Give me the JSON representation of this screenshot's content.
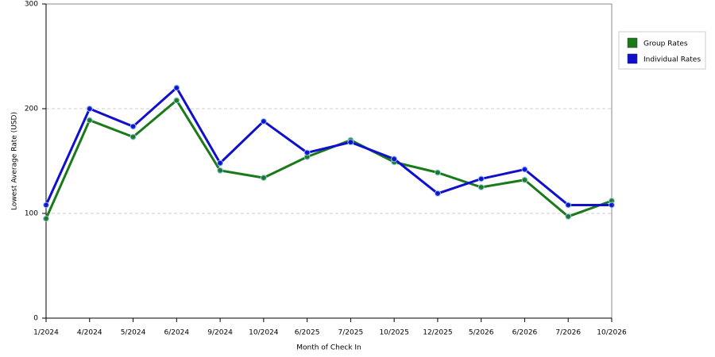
{
  "chart_data": {
    "type": "line",
    "x_label": "Month of Check In",
    "y_label": "Lowest Average Rate (USD)",
    "categories": [
      "1/2024",
      "4/2024",
      "5/2024",
      "6/2024",
      "9/2024",
      "10/2024",
      "6/2025",
      "7/2025",
      "10/2025",
      "12/2025",
      "5/2026",
      "6/2026",
      "7/2026",
      "10/2026"
    ],
    "series": [
      {
        "name": "Group Rates",
        "color": "#1a7a1a",
        "values": [
          95,
          189,
          173,
          208,
          141,
          134,
          154,
          170,
          149,
          139,
          125,
          132,
          97,
          112
        ]
      },
      {
        "name": "Individual Rates",
        "color": "#1010cc",
        "values": [
          108,
          200,
          183,
          220,
          148,
          188,
          158,
          168,
          152,
          119,
          133,
          142,
          108,
          108
        ]
      }
    ],
    "ylim": [
      0,
      300
    ],
    "yticks": [
      0,
      100,
      200,
      300
    ],
    "grid": true,
    "legend": "right"
  }
}
